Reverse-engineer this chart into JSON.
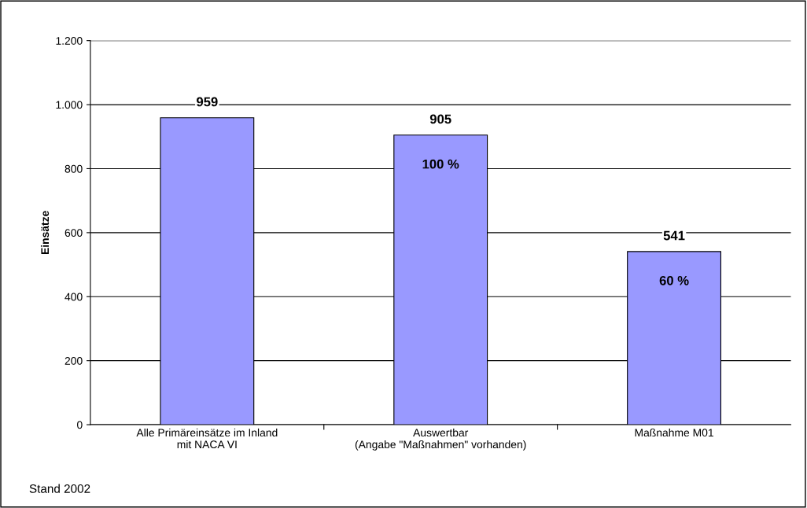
{
  "chart_data": {
    "type": "bar",
    "categories": [
      "Alle Primäreinsätze im Inland\nmit NACA VI",
      "Auswertbar\n(Angabe \"Maßnahmen\" vorhanden)",
      "Maßnahme M01"
    ],
    "values": [
      959,
      905,
      541
    ],
    "color": "#9999ff",
    "data_labels": true,
    "ylabel": "Einsätze",
    "ylim": [
      0,
      1200
    ],
    "yticks": [
      0,
      200,
      400,
      600,
      800,
      {
        "value": 1000,
        "label": "1.000"
      },
      {
        "value": 1200,
        "label": "1.200"
      }
    ],
    "grid": "y",
    "annotations": [
      {
        "text": "100 %",
        "x": "Auswertbar\n(Angabe \"Maßnahmen\" vorhanden)",
        "y": 905
      },
      {
        "text": "60 %",
        "x": "Maßnahme M01",
        "y": 541
      },
      "Stand 2002"
    ]
  }
}
